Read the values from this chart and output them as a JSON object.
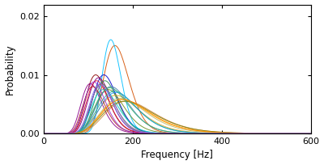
{
  "title": "",
  "xlabel": "Frequency [Hz]",
  "ylabel": "Probability",
  "xlim": [
    0,
    600
  ],
  "ylim": [
    0,
    0.022
  ],
  "yticks": [
    0,
    0.01,
    0.02
  ],
  "xticks": [
    0,
    200,
    400,
    600
  ],
  "background_color": "#ffffff",
  "curves": [
    {
      "peak": 155,
      "height": 0.015,
      "sigma": 0.18,
      "color": "#d45000"
    },
    {
      "peak": 148,
      "height": 0.016,
      "sigma": 0.14,
      "color": "#00bfff"
    },
    {
      "peak": 130,
      "height": 0.01,
      "sigma": 0.2,
      "color": "#0000cd"
    },
    {
      "peak": 112,
      "height": 0.01,
      "sigma": 0.21,
      "color": "#8b0000"
    },
    {
      "peak": 118,
      "height": 0.0095,
      "sigma": 0.21,
      "color": "#800080"
    },
    {
      "peak": 100,
      "height": 0.0085,
      "sigma": 0.22,
      "color": "#8b008b"
    },
    {
      "peak": 138,
      "height": 0.0075,
      "sigma": 0.22,
      "color": "#6b8e23"
    },
    {
      "peak": 125,
      "height": 0.0085,
      "sigma": 0.2,
      "color": "#556b2f"
    },
    {
      "peak": 133,
      "height": 0.009,
      "sigma": 0.19,
      "color": "#2e8b57"
    },
    {
      "peak": 150,
      "height": 0.0065,
      "sigma": 0.28,
      "color": "#daa520"
    },
    {
      "peak": 160,
      "height": 0.0058,
      "sigma": 0.3,
      "color": "#ffa500"
    },
    {
      "peak": 170,
      "height": 0.0055,
      "sigma": 0.3,
      "color": "#cd853f"
    },
    {
      "peak": 143,
      "height": 0.008,
      "sigma": 0.24,
      "color": "#4682b4"
    },
    {
      "peak": 152,
      "height": 0.007,
      "sigma": 0.26,
      "color": "#1e90ff"
    },
    {
      "peak": 128,
      "height": 0.0075,
      "sigma": 0.22,
      "color": "#00ced1"
    },
    {
      "peak": 114,
      "height": 0.009,
      "sigma": 0.21,
      "color": "#dc143c"
    },
    {
      "peak": 105,
      "height": 0.008,
      "sigma": 0.22,
      "color": "#b22222"
    },
    {
      "peak": 158,
      "height": 0.006,
      "sigma": 0.29,
      "color": "#bdb76b"
    },
    {
      "peak": 165,
      "height": 0.0055,
      "sigma": 0.31,
      "color": "#808000"
    },
    {
      "peak": 122,
      "height": 0.0085,
      "sigma": 0.2,
      "color": "#7b68ee"
    },
    {
      "peak": 140,
      "height": 0.0078,
      "sigma": 0.25,
      "color": "#3cb371"
    },
    {
      "peak": 148,
      "height": 0.0072,
      "sigma": 0.27,
      "color": "#20b2aa"
    },
    {
      "peak": 162,
      "height": 0.0058,
      "sigma": 0.3,
      "color": "#ff8c00"
    },
    {
      "peak": 108,
      "height": 0.0088,
      "sigma": 0.21,
      "color": "#9932cc"
    },
    {
      "peak": 124,
      "height": 0.0082,
      "sigma": 0.21,
      "color": "#9370db"
    }
  ]
}
